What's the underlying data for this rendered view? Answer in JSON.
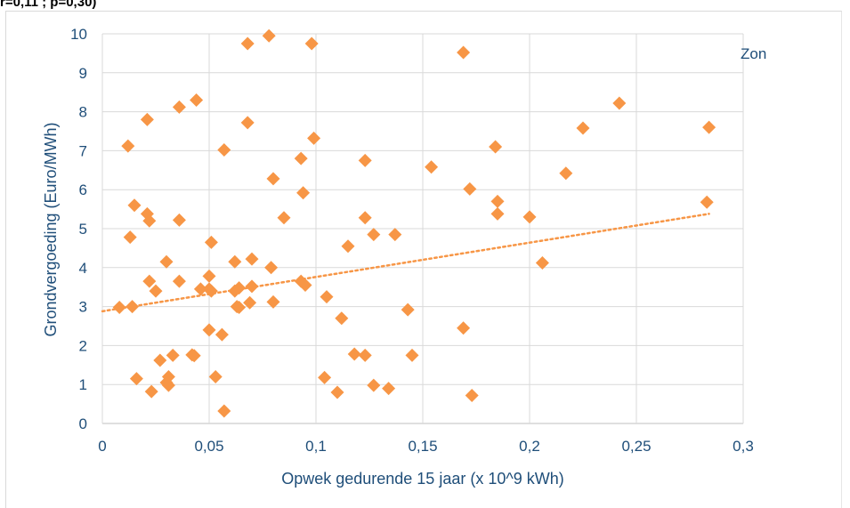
{
  "caption": "r=0,11 ; p=0,30)",
  "chart_data": {
    "type": "scatter",
    "title": "",
    "series_label": "Zon",
    "xlabel": "Opwek gedurende 15 jaar (x 10^9 kWh)",
    "ylabel": "Grondvergoeding (Euro/MWh)",
    "xlim": [
      0,
      0.3
    ],
    "ylim": [
      0,
      10
    ],
    "x_ticks": [
      0,
      0.05,
      0.1,
      0.15,
      0.2,
      0.25,
      0.3
    ],
    "x_tick_labels": [
      "0",
      "0,05",
      "0,1",
      "0,15",
      "0,2",
      "0,25",
      "0,3"
    ],
    "y_ticks": [
      0,
      1,
      2,
      3,
      4,
      5,
      6,
      7,
      8,
      9,
      10
    ],
    "y_tick_labels": [
      "0",
      "1",
      "2",
      "3",
      "4",
      "5",
      "6",
      "7",
      "8",
      "9",
      "10"
    ],
    "grid": "vertical and horizontal",
    "marker": "diamond",
    "marker_color": "#f79646",
    "trendline": {
      "type": "linear",
      "style": "dotted",
      "color": "#f79646",
      "x": [
        0,
        0.284
      ],
      "y": [
        2.88,
        5.38
      ]
    },
    "points": [
      [
        0.008,
        2.98
      ],
      [
        0.014,
        3.0
      ],
      [
        0.013,
        4.78
      ],
      [
        0.012,
        7.12
      ],
      [
        0.015,
        5.6
      ],
      [
        0.016,
        1.15
      ],
      [
        0.021,
        5.38
      ],
      [
        0.022,
        5.2
      ],
      [
        0.021,
        7.8
      ],
      [
        0.022,
        3.65
      ],
      [
        0.023,
        0.82
      ],
      [
        0.025,
        3.4
      ],
      [
        0.027,
        1.62
      ],
      [
        0.03,
        4.15
      ],
      [
        0.031,
        1.2
      ],
      [
        0.03,
        1.05
      ],
      [
        0.031,
        0.98
      ],
      [
        0.033,
        1.75
      ],
      [
        0.036,
        3.65
      ],
      [
        0.036,
        5.22
      ],
      [
        0.036,
        8.12
      ],
      [
        0.042,
        1.76
      ],
      [
        0.043,
        1.74
      ],
      [
        0.044,
        8.3
      ],
      [
        0.046,
        3.45
      ],
      [
        0.05,
        3.45
      ],
      [
        0.05,
        3.78
      ],
      [
        0.05,
        2.4
      ],
      [
        0.051,
        4.65
      ],
      [
        0.051,
        3.4
      ],
      [
        0.053,
        1.2
      ],
      [
        0.056,
        2.28
      ],
      [
        0.057,
        7.02
      ],
      [
        0.057,
        0.32
      ],
      [
        0.062,
        4.15
      ],
      [
        0.062,
        3.4
      ],
      [
        0.063,
        3.0
      ],
      [
        0.064,
        2.98
      ],
      [
        0.064,
        3.48
      ],
      [
        0.068,
        7.72
      ],
      [
        0.068,
        9.75
      ],
      [
        0.069,
        3.1
      ],
      [
        0.07,
        4.22
      ],
      [
        0.07,
        3.52
      ],
      [
        0.078,
        9.95
      ],
      [
        0.079,
        4.0
      ],
      [
        0.08,
        6.28
      ],
      [
        0.08,
        3.12
      ],
      [
        0.085,
        5.28
      ],
      [
        0.093,
        6.8
      ],
      [
        0.093,
        3.65
      ],
      [
        0.094,
        5.92
      ],
      [
        0.095,
        3.55
      ],
      [
        0.098,
        9.75
      ],
      [
        0.099,
        7.32
      ],
      [
        0.104,
        1.18
      ],
      [
        0.105,
        3.25
      ],
      [
        0.11,
        0.8
      ],
      [
        0.112,
        2.7
      ],
      [
        0.115,
        4.55
      ],
      [
        0.118,
        1.78
      ],
      [
        0.123,
        1.75
      ],
      [
        0.123,
        5.28
      ],
      [
        0.123,
        6.75
      ],
      [
        0.127,
        4.85
      ],
      [
        0.127,
        0.98
      ],
      [
        0.134,
        0.9
      ],
      [
        0.137,
        4.85
      ],
      [
        0.143,
        2.92
      ],
      [
        0.145,
        1.75
      ],
      [
        0.154,
        6.58
      ],
      [
        0.169,
        9.52
      ],
      [
        0.169,
        2.45
      ],
      [
        0.172,
        6.02
      ],
      [
        0.173,
        0.72
      ],
      [
        0.184,
        7.1
      ],
      [
        0.185,
        5.7
      ],
      [
        0.185,
        5.38
      ],
      [
        0.2,
        5.3
      ],
      [
        0.206,
        4.12
      ],
      [
        0.217,
        6.42
      ],
      [
        0.225,
        7.58
      ],
      [
        0.242,
        8.22
      ],
      [
        0.283,
        5.68
      ],
      [
        0.284,
        7.6
      ]
    ]
  }
}
